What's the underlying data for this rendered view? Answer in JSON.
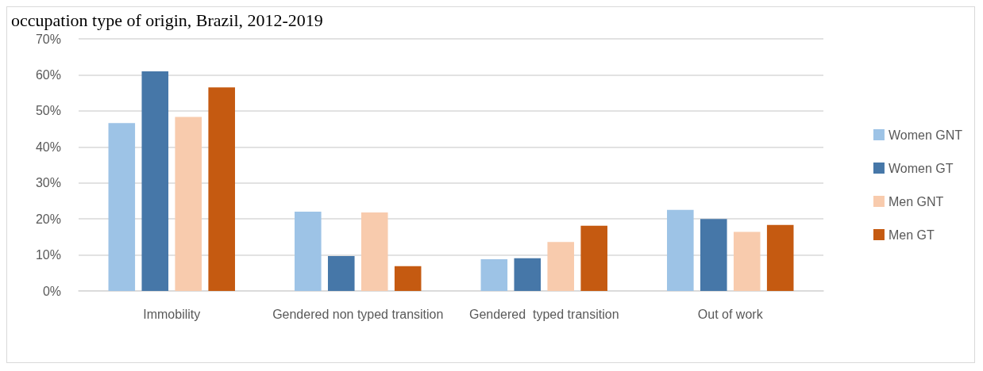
{
  "chart_data": {
    "type": "bar",
    "title": "occupation type of origin, Brazil, 2012-2019",
    "categories": [
      "Immobility",
      "Gendered non typed transition",
      "Gendered  typed transition",
      "Out of work"
    ],
    "series": [
      {
        "name": "Women GNT",
        "color": "#9dc3e6",
        "values": [
          46.6,
          22.0,
          8.8,
          22.5
        ]
      },
      {
        "name": "Women GT",
        "color": "#4677a8",
        "values": [
          61.0,
          9.7,
          9.1,
          20.0
        ]
      },
      {
        "name": "Men GNT",
        "color": "#f8cbad",
        "values": [
          48.3,
          21.8,
          13.6,
          16.4
        ]
      },
      {
        "name": "Men GT",
        "color": "#c55a11",
        "values": [
          56.5,
          6.9,
          18.1,
          18.3
        ]
      }
    ],
    "ylim": [
      0,
      70
    ],
    "yticks": [
      {
        "value": 0,
        "label": "0%"
      },
      {
        "value": 10,
        "label": "10%"
      },
      {
        "value": 20,
        "label": "20%"
      },
      {
        "value": 30,
        "label": "30%"
      },
      {
        "value": 40,
        "label": "40%"
      },
      {
        "value": 50,
        "label": "50%"
      },
      {
        "value": 60,
        "label": "60%"
      },
      {
        "value": 70,
        "label": "70%"
      }
    ],
    "grid": "y",
    "legend": "right"
  }
}
